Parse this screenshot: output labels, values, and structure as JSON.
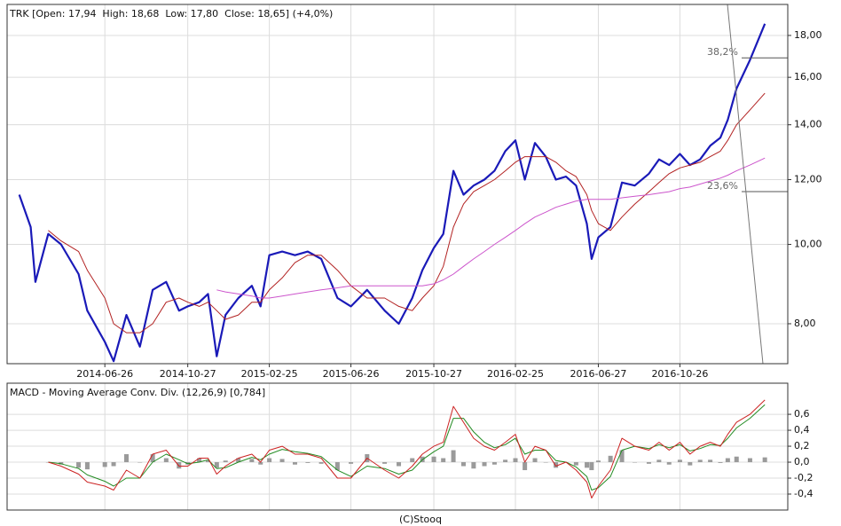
{
  "chart_data": [
    {
      "type": "line",
      "title": "TRK [Open: 17,94  High: 18,68  Low: 17,80  Close: 18,65] (+4,0%)",
      "log_scale": true,
      "grid": true,
      "xlim": [
        "2014-02-01",
        "2017-04-04"
      ],
      "xticks": [
        "2014-06-26",
        "2014-10-27",
        "2015-02-25",
        "2015-06-26",
        "2015-10-27",
        "2016-02-25",
        "2016-06-27",
        "2016-10-26"
      ],
      "ylim": [
        7.15,
        19.64
      ],
      "yticks": [
        {
          "value": 8,
          "label": "8,00"
        },
        {
          "value": 10,
          "label": "10,00"
        },
        {
          "value": 12,
          "label": "12,00"
        },
        {
          "value": 14,
          "label": "14,00"
        },
        {
          "value": 16,
          "label": "16,00"
        },
        {
          "value": 18,
          "label": "18,00"
        }
      ],
      "x": [
        "2014-02-19",
        "2014-03-08",
        "2014-03-15",
        "2014-04-03",
        "2014-04-22",
        "2014-05-18",
        "2014-05-31",
        "2014-06-26",
        "2014-07-09",
        "2014-07-28",
        "2014-08-17",
        "2014-09-05",
        "2014-09-25",
        "2014-10-14",
        "2014-10-27",
        "2014-11-13",
        "2014-11-26",
        "2014-12-09",
        "2014-12-22",
        "2015-01-10",
        "2015-01-30",
        "2015-02-12",
        "2015-02-25",
        "2015-03-16",
        "2015-04-04",
        "2015-04-23",
        "2015-05-13",
        "2015-06-06",
        "2015-06-26",
        "2015-07-20",
        "2015-08-15",
        "2015-09-05",
        "2015-09-25",
        "2015-10-10",
        "2015-10-27",
        "2015-11-10",
        "2015-11-25",
        "2015-12-10",
        "2015-12-25",
        "2016-01-10",
        "2016-01-25",
        "2016-02-10",
        "2016-02-25",
        "2016-03-10",
        "2016-03-25",
        "2016-04-10",
        "2016-04-25",
        "2016-05-10",
        "2016-05-25",
        "2016-06-10",
        "2016-06-17",
        "2016-06-27",
        "2016-07-15",
        "2016-08-01",
        "2016-08-20",
        "2016-09-10",
        "2016-09-25",
        "2016-10-10",
        "2016-10-26",
        "2016-11-10",
        "2016-11-25",
        "2016-12-10",
        "2016-12-25",
        "2017-01-05",
        "2017-01-18",
        "2017-02-07",
        "2017-03-01"
      ],
      "series": [
        {
          "color": "#1a1ab8",
          "width": 2.2,
          "values": [
            11.5,
            10.5,
            9.0,
            10.3,
            10.0,
            9.2,
            8.3,
            7.6,
            7.2,
            8.2,
            7.5,
            8.8,
            9.0,
            8.3,
            8.4,
            8.5,
            8.7,
            7.3,
            8.2,
            8.6,
            8.9,
            8.4,
            9.7,
            9.8,
            9.7,
            9.8,
            9.6,
            8.6,
            8.4,
            8.8,
            8.3,
            8.0,
            8.6,
            9.3,
            9.9,
            10.3,
            12.3,
            11.5,
            11.8,
            12.0,
            12.3,
            13.0,
            13.4,
            12.0,
            13.3,
            12.8,
            12.0,
            12.1,
            11.8,
            10.6,
            9.6,
            10.2,
            10.5,
            11.9,
            11.8,
            12.2,
            12.7,
            12.5,
            12.9,
            12.5,
            12.7,
            13.2,
            13.5,
            14.2,
            15.5,
            16.8,
            18.6
          ]
        },
        {
          "color": "#b22222",
          "width": 1,
          "values": [
            null,
            null,
            null,
            10.4,
            10.1,
            9.8,
            9.3,
            8.6,
            8.0,
            7.8,
            7.8,
            8.0,
            8.5,
            8.6,
            8.5,
            8.4,
            8.5,
            8.3,
            8.1,
            8.2,
            8.5,
            8.5,
            8.8,
            9.1,
            9.5,
            9.7,
            9.7,
            9.3,
            8.9,
            8.6,
            8.6,
            8.4,
            8.3,
            8.6,
            8.9,
            9.4,
            10.5,
            11.2,
            11.6,
            11.8,
            12.0,
            12.3,
            12.6,
            12.8,
            12.8,
            12.8,
            12.6,
            12.3,
            12.1,
            11.5,
            11.0,
            10.6,
            10.4,
            10.8,
            11.2,
            11.6,
            11.9,
            12.2,
            12.4,
            12.5,
            12.6,
            12.8,
            13.0,
            13.4,
            14.0,
            14.6,
            15.3
          ]
        },
        {
          "color": "#cc55cc",
          "width": 1,
          "values": [
            null,
            null,
            null,
            null,
            null,
            null,
            null,
            null,
            null,
            null,
            null,
            null,
            null,
            null,
            null,
            null,
            null,
            8.8,
            8.75,
            8.7,
            8.65,
            8.6,
            8.6,
            8.65,
            8.7,
            8.75,
            8.8,
            8.85,
            8.9,
            8.9,
            8.9,
            8.9,
            8.9,
            8.9,
            8.95,
            9.05,
            9.2,
            9.4,
            9.6,
            9.8,
            10.0,
            10.2,
            10.4,
            10.6,
            10.8,
            10.95,
            11.1,
            11.2,
            11.3,
            11.35,
            11.35,
            11.35,
            11.35,
            11.4,
            11.45,
            11.5,
            11.55,
            11.6,
            11.7,
            11.75,
            11.85,
            11.95,
            12.05,
            12.15,
            12.3,
            12.5,
            12.75
          ]
        }
      ],
      "annotations": [
        {
          "label": "38,2%",
          "value": 16.9
        },
        {
          "label": "23,6%",
          "value": 11.6
        }
      ]
    },
    {
      "type": "line",
      "title": "MACD - Moving Average Conv. Div. (12,26,9) [0,784]",
      "grid": true,
      "xlim": [
        "2014-02-01",
        "2017-04-04"
      ],
      "ylim": [
        -0.6,
        0.99
      ],
      "yticks": [
        {
          "value": -0.4,
          "label": "-0,4"
        },
        {
          "value": -0.2,
          "label": "-0,2"
        },
        {
          "value": 0,
          "label": "0,0"
        },
        {
          "value": 0.2,
          "label": "0,2"
        },
        {
          "value": 0.4,
          "label": "0,4"
        },
        {
          "value": 0.6,
          "label": "0,6"
        }
      ],
      "x": [
        "2014-02-19",
        "2014-03-08",
        "2014-03-15",
        "2014-04-03",
        "2014-04-22",
        "2014-05-18",
        "2014-05-31",
        "2014-06-26",
        "2014-07-09",
        "2014-07-28",
        "2014-08-17",
        "2014-09-05",
        "2014-09-25",
        "2014-10-14",
        "2014-10-27",
        "2014-11-13",
        "2014-11-26",
        "2014-12-09",
        "2014-12-22",
        "2015-01-10",
        "2015-01-30",
        "2015-02-12",
        "2015-02-25",
        "2015-03-16",
        "2015-04-04",
        "2015-04-23",
        "2015-05-13",
        "2015-06-06",
        "2015-06-26",
        "2015-07-20",
        "2015-08-15",
        "2015-09-05",
        "2015-09-25",
        "2015-10-10",
        "2015-10-27",
        "2015-11-10",
        "2015-11-25",
        "2015-12-10",
        "2015-12-25",
        "2016-01-10",
        "2016-01-25",
        "2016-02-10",
        "2016-02-25",
        "2016-03-10",
        "2016-03-25",
        "2016-04-10",
        "2016-04-25",
        "2016-05-10",
        "2016-05-25",
        "2016-06-10",
        "2016-06-17",
        "2016-06-27",
        "2016-07-15",
        "2016-08-01",
        "2016-08-20",
        "2016-09-10",
        "2016-09-25",
        "2016-10-10",
        "2016-10-26",
        "2016-11-10",
        "2016-11-25",
        "2016-12-10",
        "2016-12-25",
        "2017-01-05",
        "2017-01-18",
        "2017-02-07",
        "2017-03-01"
      ],
      "series": [
        {
          "color": "#9a9a9a",
          "style": "bar",
          "values": [
            null,
            null,
            null,
            0.0,
            -0.03,
            -0.07,
            -0.09,
            -0.06,
            -0.05,
            0.1,
            0.0,
            0.1,
            0.05,
            -0.08,
            -0.03,
            0.05,
            0.02,
            -0.07,
            0.02,
            0.05,
            0.04,
            -0.03,
            0.05,
            0.04,
            -0.03,
            -0.01,
            -0.02,
            -0.1,
            -0.02,
            0.1,
            -0.02,
            -0.05,
            0.05,
            0.07,
            0.07,
            0.05,
            0.15,
            -0.05,
            -0.08,
            -0.05,
            -0.03,
            0.03,
            0.05,
            -0.1,
            0.05,
            0.0,
            -0.07,
            0.0,
            -0.04,
            -0.07,
            -0.1,
            0.02,
            0.08,
            0.15,
            0.0,
            -0.02,
            0.03,
            -0.03,
            0.03,
            -0.04,
            0.03,
            0.03,
            -0.01,
            0.05,
            0.07,
            0.05,
            0.06
          ]
        },
        {
          "color": "#228b22",
          "width": 1,
          "values": [
            null,
            null,
            null,
            0.0,
            -0.02,
            -0.08,
            -0.16,
            -0.24,
            -0.3,
            -0.2,
            -0.2,
            0.0,
            0.1,
            0.03,
            -0.02,
            0.0,
            0.03,
            -0.08,
            -0.07,
            0.0,
            0.06,
            0.03,
            0.1,
            0.16,
            0.13,
            0.11,
            0.07,
            -0.1,
            -0.18,
            -0.05,
            -0.08,
            -0.15,
            -0.1,
            0.03,
            0.13,
            0.2,
            0.55,
            0.55,
            0.38,
            0.25,
            0.18,
            0.22,
            0.3,
            0.1,
            0.15,
            0.15,
            0.02,
            0.0,
            -0.06,
            -0.18,
            -0.35,
            -0.32,
            -0.18,
            0.15,
            0.2,
            0.17,
            0.22,
            0.18,
            0.22,
            0.14,
            0.17,
            0.22,
            0.21,
            0.3,
            0.43,
            0.55,
            0.72
          ]
        },
        {
          "color": "#cc2222",
          "width": 1,
          "values": [
            null,
            null,
            null,
            0.0,
            -0.05,
            -0.15,
            -0.25,
            -0.3,
            -0.35,
            -0.1,
            -0.2,
            0.1,
            0.15,
            -0.05,
            -0.05,
            0.05,
            0.05,
            -0.15,
            -0.05,
            0.05,
            0.1,
            0.0,
            0.15,
            0.2,
            0.1,
            0.1,
            0.05,
            -0.2,
            -0.2,
            0.05,
            -0.1,
            -0.2,
            -0.05,
            0.1,
            0.2,
            0.25,
            0.7,
            0.5,
            0.3,
            0.2,
            0.15,
            0.25,
            0.35,
            0.0,
            0.2,
            0.15,
            -0.05,
            0.0,
            -0.1,
            -0.25,
            -0.45,
            -0.3,
            -0.1,
            0.3,
            0.2,
            0.15,
            0.25,
            0.15,
            0.25,
            0.1,
            0.2,
            0.25,
            0.2,
            0.35,
            0.5,
            0.6,
            0.78
          ]
        }
      ]
    }
  ],
  "footer": "(C)Stooq"
}
